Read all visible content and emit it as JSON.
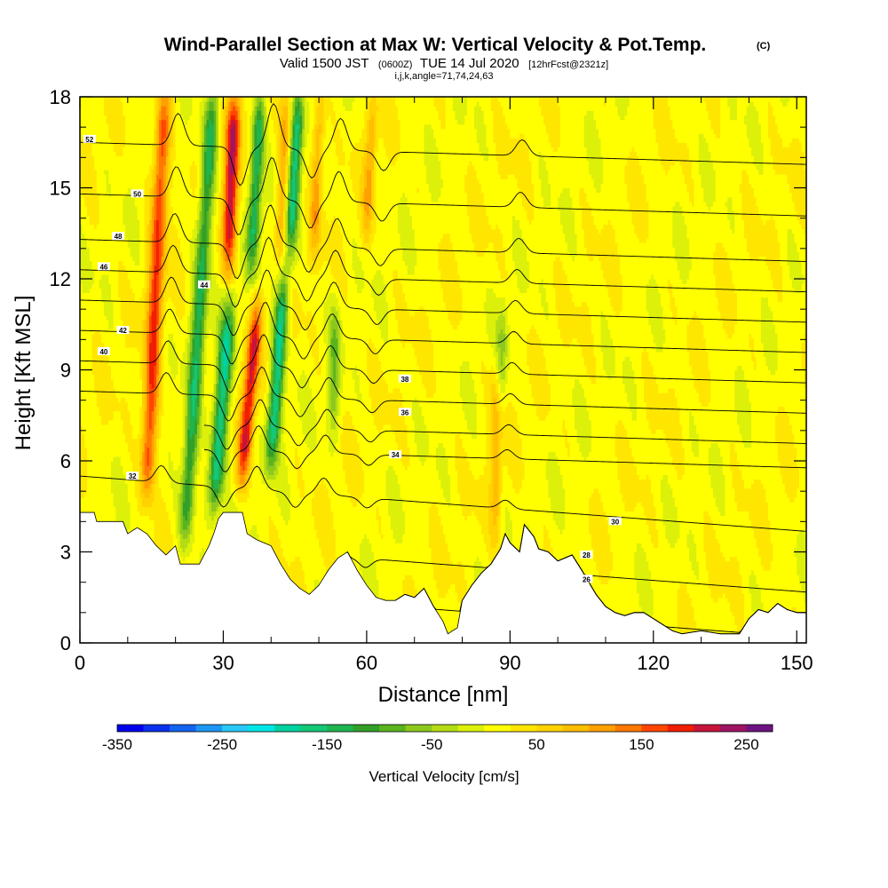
{
  "chart_data": {
    "type": "heatmap",
    "title": "Wind-Parallel Section at Max W: Vertical Velocity & Pot.Temp.",
    "title_mark": "(C)",
    "subtitle": {
      "valid": "Valid 1500 JST",
      "utc": "(0600Z)",
      "date": "TUE 14 Jul 2020",
      "fcst": "[12hrFcst@2321z]"
    },
    "indices": "i,j,k,angle=71,74,24,63",
    "xlabel": "Distance [nm]",
    "ylabel": "Height [Kft MSL]",
    "xlim": [
      0,
      152
    ],
    "ylim": [
      0,
      18
    ],
    "x_ticks": [
      "0",
      "30",
      "60",
      "90",
      "120",
      "150"
    ],
    "y_ticks": [
      "0",
      "3",
      "6",
      "9",
      "12",
      "15",
      "18"
    ],
    "colorbar": {
      "label": "Vertical Velocity [cm/s]",
      "tick_labels": [
        "-350",
        "-250",
        "-150",
        "-50",
        "50",
        "150",
        "250"
      ],
      "tick_values": [
        -350,
        -250,
        -150,
        -50,
        50,
        150,
        250
      ],
      "range": [
        -350,
        275
      ],
      "bins": 25,
      "colors": [
        "#0000ee",
        "#0a32ee",
        "#1464f0",
        "#1e96f5",
        "#28c8f8",
        "#00e6e6",
        "#00d2a0",
        "#14c878",
        "#1eb450",
        "#32a028",
        "#5ab41e",
        "#8cc81e",
        "#b4dc14",
        "#dcf00a",
        "#ffff00",
        "#ffe600",
        "#ffd200",
        "#ffbe00",
        "#ffa000",
        "#ff7800",
        "#ff4600",
        "#f01e00",
        "#c8143c",
        "#a01464",
        "#6e1482"
      ]
    },
    "terrain_kft": [
      [
        0,
        4.3
      ],
      [
        3,
        4.3
      ],
      [
        3,
        4.0
      ],
      [
        9,
        4.0
      ],
      [
        10,
        3.6
      ],
      [
        12,
        3.8
      ],
      [
        14,
        3.6
      ],
      [
        16,
        3.2
      ],
      [
        18,
        2.9
      ],
      [
        20,
        3.2
      ],
      [
        21,
        2.6
      ],
      [
        25,
        2.6
      ],
      [
        27,
        3.2
      ],
      [
        28,
        3.6
      ],
      [
        29,
        4.1
      ],
      [
        30,
        4.3
      ],
      [
        34,
        4.3
      ],
      [
        35,
        3.6
      ],
      [
        37,
        3.4
      ],
      [
        40,
        3.2
      ],
      [
        42,
        2.6
      ],
      [
        44,
        2.1
      ],
      [
        46,
        1.8
      ],
      [
        48,
        1.6
      ],
      [
        50,
        1.9
      ],
      [
        52,
        2.4
      ],
      [
        54,
        2.8
      ],
      [
        56,
        3.0
      ],
      [
        58,
        2.4
      ],
      [
        60,
        1.9
      ],
      [
        62,
        1.5
      ],
      [
        64,
        1.4
      ],
      [
        66,
        1.4
      ],
      [
        68,
        1.6
      ],
      [
        70,
        1.5
      ],
      [
        72,
        1.8
      ],
      [
        74,
        1.2
      ],
      [
        76,
        0.7
      ],
      [
        77,
        0.3
      ],
      [
        79,
        0.5
      ],
      [
        80,
        1.4
      ],
      [
        82,
        1.9
      ],
      [
        84,
        2.3
      ],
      [
        86,
        2.6
      ],
      [
        88,
        3.1
      ],
      [
        89,
        3.6
      ],
      [
        90,
        3.3
      ],
      [
        92,
        3.0
      ],
      [
        93,
        3.9
      ],
      [
        95,
        3.5
      ],
      [
        96,
        3.1
      ],
      [
        98,
        3.0
      ],
      [
        100,
        2.7
      ],
      [
        103,
        2.9
      ],
      [
        105,
        2.4
      ],
      [
        108,
        1.6
      ],
      [
        110,
        1.2
      ],
      [
        112,
        1.0
      ],
      [
        114,
        0.9
      ],
      [
        116,
        1.0
      ],
      [
        118,
        1.0
      ],
      [
        120,
        0.8
      ],
      [
        122,
        0.6
      ],
      [
        124,
        0.4
      ],
      [
        126,
        0.3
      ],
      [
        130,
        0.4
      ],
      [
        134,
        0.3
      ],
      [
        138,
        0.3
      ],
      [
        140,
        0.8
      ],
      [
        142,
        1.1
      ],
      [
        144,
        1.0
      ],
      [
        146,
        1.3
      ],
      [
        148,
        1.1
      ],
      [
        150,
        1.0
      ],
      [
        152,
        1.0
      ]
    ],
    "updrafts": [
      {
        "x_base": 14,
        "tilt": 0.28,
        "z_base": 5.0,
        "z_top": 18,
        "peak_cm_s": 160,
        "width_nm": 1.6
      },
      {
        "x_base": 31,
        "tilt": 0.25,
        "z_base": 12.5,
        "z_top": 18,
        "peak_cm_s": 200,
        "width_nm": 1.5
      },
      {
        "x_base": 34,
        "tilt": 0.55,
        "z_base": 5.5,
        "z_top": 11.0,
        "peak_cm_s": 190,
        "width_nm": 1.4
      },
      {
        "x_base": 42,
        "tilt": 0.25,
        "z_base": 13.0,
        "z_top": 18,
        "peak_cm_s": 90,
        "width_nm": 1.2
      },
      {
        "x_base": 49,
        "tilt": 0.25,
        "z_base": 13.0,
        "z_top": 18,
        "peak_cm_s": 90,
        "width_nm": 1.2
      },
      {
        "x_base": 60,
        "tilt": 0.3,
        "z_base": 13.5,
        "z_top": 18,
        "peak_cm_s": 80,
        "width_nm": 1.2
      },
      {
        "x_base": 87,
        "tilt": 0.0,
        "z_base": 3.5,
        "z_top": 9.0,
        "peak_cm_s": 70,
        "width_nm": 1.2
      }
    ],
    "downdrafts": [
      {
        "x_base": 22,
        "tilt": 0.4,
        "z_base": 3.5,
        "z_top": 18,
        "peak_cm_s": -150,
        "width_nm": 1.5
      },
      {
        "x_base": 28,
        "tilt": 0.5,
        "z_base": 4.5,
        "z_top": 11.0,
        "peak_cm_s": -190,
        "width_nm": 1.6
      },
      {
        "x_base": 36,
        "tilt": 0.3,
        "z_base": 12.5,
        "z_top": 18,
        "peak_cm_s": -160,
        "width_nm": 1.3
      },
      {
        "x_base": 40,
        "tilt": 0.45,
        "z_base": 6.0,
        "z_top": 12.0,
        "peak_cm_s": -190,
        "width_nm": 1.4
      },
      {
        "x_base": 44,
        "tilt": 0.35,
        "z_base": 13.0,
        "z_top": 18,
        "peak_cm_s": -170,
        "width_nm": 1.3
      },
      {
        "x_base": 53,
        "tilt": 0.1,
        "z_base": 7.0,
        "z_top": 11.0,
        "peak_cm_s": -80,
        "width_nm": 1.2
      },
      {
        "x_base": 88,
        "tilt": 0.2,
        "z_base": 8.0,
        "z_top": 11.0,
        "peak_cm_s": -60,
        "width_nm": 1.2
      }
    ],
    "isentropes": [
      {
        "value": 26,
        "z_base": 1.5,
        "x_start": 100,
        "label": "26",
        "label_at": [
          106,
          2.1
        ]
      },
      {
        "value": 28,
        "z_base": 2.0,
        "x_start": 66,
        "label": "28",
        "label_at": [
          106,
          2.9
        ]
      },
      {
        "value": 30,
        "z_base": 3.5,
        "x_start": 56,
        "label": "30",
        "label_at": [
          112,
          4.0
        ]
      },
      {
        "value": 32,
        "z_base": 5.5,
        "x_start": 0,
        "label": "32",
        "label_at": [
          11,
          5.5
        ]
      },
      {
        "value": 34,
        "z_base": 6.5,
        "x_start": 26,
        "label": "34",
        "label_at": [
          66,
          6.2
        ]
      },
      {
        "value": 36,
        "z_base": 7.3,
        "x_start": 26,
        "label": "36",
        "label_at": [
          68,
          7.6
        ]
      },
      {
        "value": 38,
        "z_base": 8.3,
        "x_start": 0,
        "label": "38",
        "label_at": [
          68,
          8.7
        ]
      },
      {
        "value": 40,
        "z_base": 9.3,
        "x_start": 0,
        "label": "40",
        "label_at": [
          5,
          9.6
        ]
      },
      {
        "value": 42,
        "z_base": 10.3,
        "x_start": 0,
        "label": "42",
        "label_at": [
          9,
          10.3
        ]
      },
      {
        "value": 44,
        "z_base": 11.3,
        "x_start": 0,
        "label": "44",
        "label_at": [
          26,
          11.8
        ]
      },
      {
        "value": 46,
        "z_base": 12.3,
        "x_start": 0,
        "label": "46",
        "label_at": [
          5,
          12.4
        ]
      },
      {
        "value": 48,
        "z_base": 13.3,
        "x_start": 0,
        "label": "48",
        "label_at": [
          8,
          13.4
        ]
      },
      {
        "value": 50,
        "z_base": 14.8,
        "x_start": 0,
        "label": "50",
        "label_at": [
          12,
          14.8
        ]
      },
      {
        "value": 52,
        "z_base": 16.5,
        "x_start": 0,
        "label": "52",
        "label_at": [
          2,
          16.6
        ]
      }
    ]
  }
}
